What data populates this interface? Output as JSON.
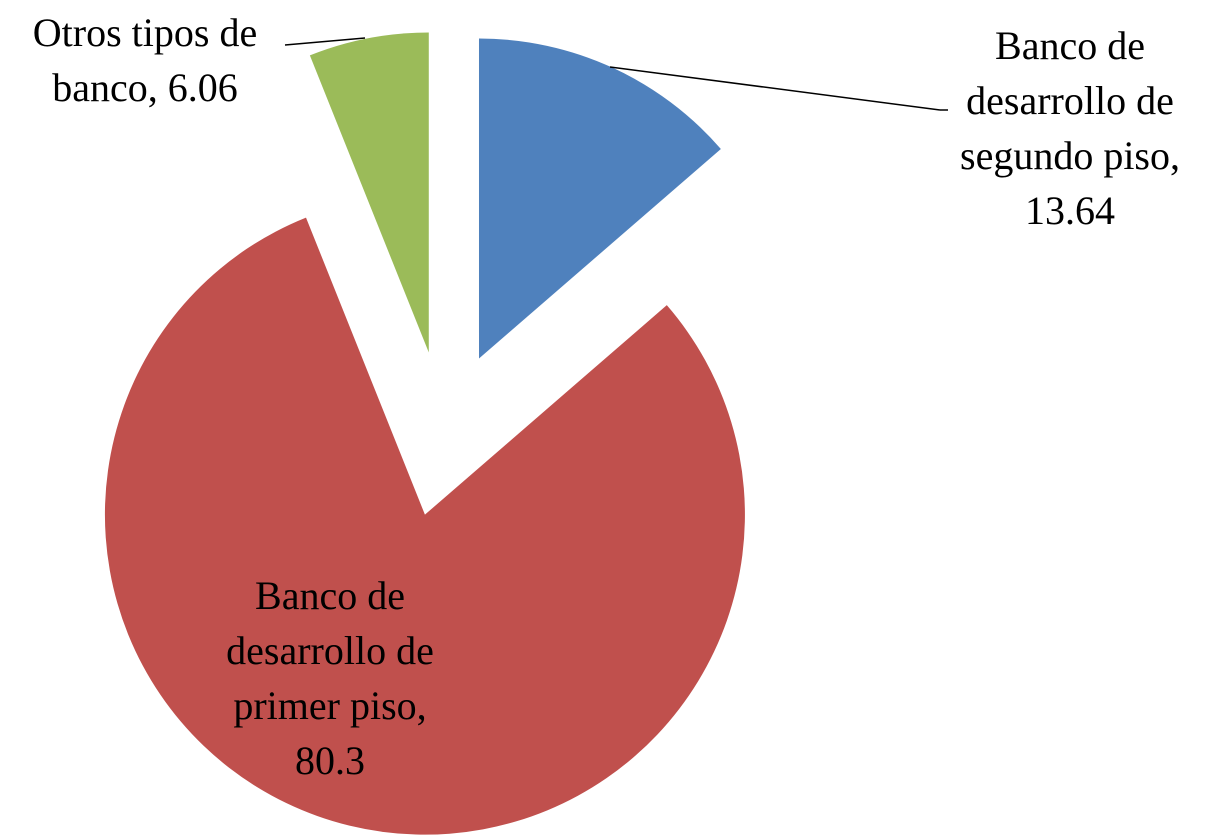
{
  "chart_data": {
    "type": "pie",
    "categories": [
      "Banco de desarrollo de segundo piso,",
      "Banco de desarrollo de primer piso,",
      "Otros tipos de banco,"
    ],
    "values": [
      13.64,
      80.3,
      6.06
    ],
    "colors": [
      "#4f81bd",
      "#c0504d",
      "#9bbb59"
    ],
    "exploded": true
  }
}
